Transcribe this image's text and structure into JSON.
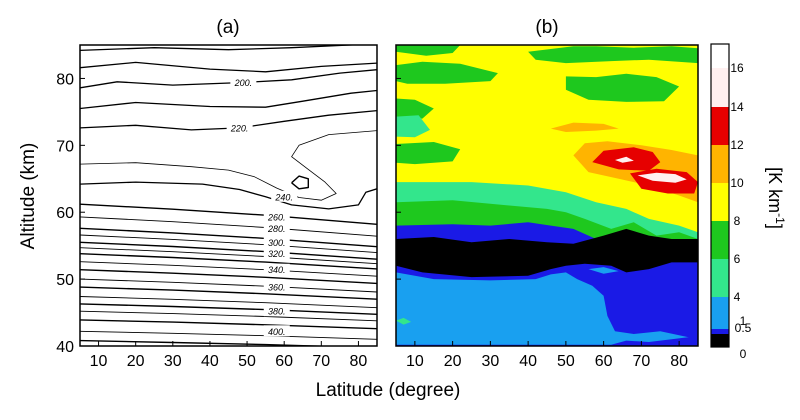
{
  "chart_data": [
    {
      "panel": "(a)",
      "type": "contour",
      "xlim": [
        5,
        85
      ],
      "ylim": [
        40,
        85
      ],
      "x_ticks": [
        "10",
        "20",
        "30",
        "40",
        "50",
        "60",
        "70",
        "80"
      ],
      "y_ticks": [
        "40",
        "50",
        "60",
        "70",
        "80"
      ],
      "contour_labels": [
        "200.",
        "220.",
        "240.",
        "260.",
        "280.",
        "300.",
        "320.",
        "340.",
        "360.",
        "380.",
        "400."
      ],
      "labeled_levels": [
        {
          "text": "200.",
          "lat": 49,
          "alt": 79.4
        },
        {
          "text": "220.",
          "lat": 48,
          "alt": 72.6
        },
        {
          "text": "240.",
          "lat": 60,
          "alt": 62.3
        },
        {
          "text": "260.",
          "lat": 58,
          "alt": 59.3
        },
        {
          "text": "280.",
          "lat": 58,
          "alt": 57.6
        },
        {
          "text": "300.",
          "lat": 58,
          "alt": 55.5
        },
        {
          "text": "320.",
          "lat": 58,
          "alt": 53.8
        },
        {
          "text": "340.",
          "lat": 58,
          "alt": 51.4
        },
        {
          "text": "360.",
          "lat": 58,
          "alt": 48.8
        },
        {
          "text": "380.",
          "lat": 58,
          "alt": 45.2
        },
        {
          "text": "400.",
          "lat": 58,
          "alt": 42.2
        }
      ]
    },
    {
      "panel": "(b)",
      "type": "heatmap",
      "xlim": [
        5,
        85
      ],
      "ylim": [
        40,
        85
      ],
      "x_ticks": [
        "10",
        "20",
        "30",
        "40",
        "50",
        "60",
        "70",
        "80"
      ],
      "colorbar": {
        "unit": "[K km-1]",
        "unit_main": "[K km",
        "unit_sup": "-1",
        "unit_close": "]",
        "levels": [
          0,
          0.5,
          1,
          4,
          6,
          8,
          10,
          12,
          14,
          16
        ],
        "tick_labels": [
          "0",
          "0.5",
          "1",
          "4",
          "6",
          "8",
          "10",
          "12",
          "14",
          "16"
        ],
        "colors": [
          "#000000",
          "#1a1ae6",
          "#19a0f0",
          "#33e68c",
          "#1ec81e",
          "#ffff00",
          "#ffb400",
          "#e60000",
          "#fff0f0"
        ]
      }
    }
  ],
  "shared": {
    "ylabel": "Altitude (km)",
    "xlabel": "Latitude (degree)"
  }
}
